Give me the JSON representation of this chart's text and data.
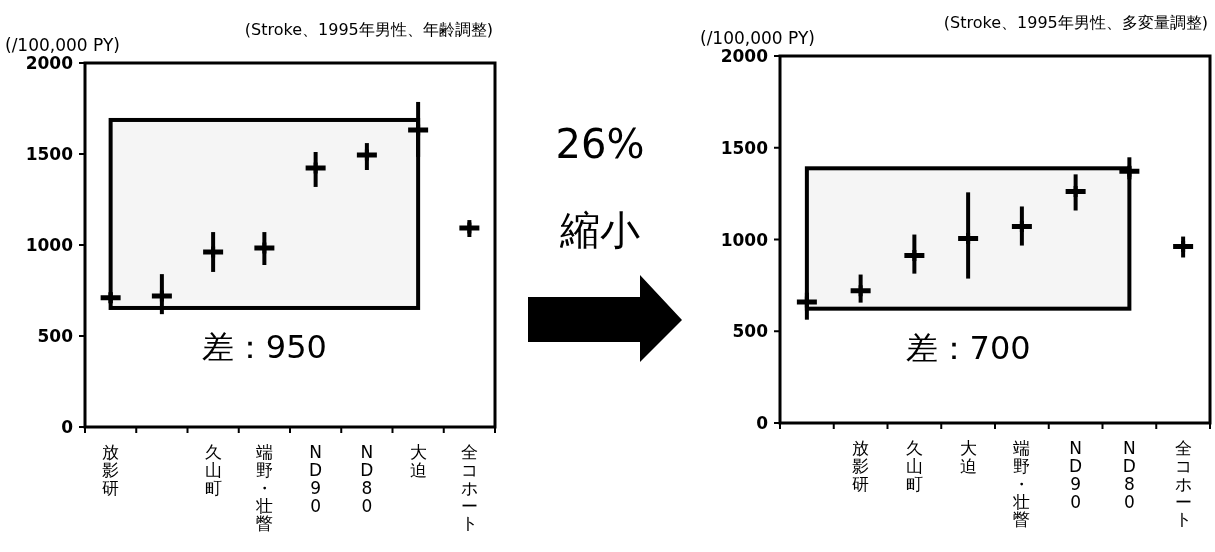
{
  "chart_data": [
    {
      "type": "scatter",
      "title": "(Stroke、1995年男性、年齢調整)",
      "ylabel": "(/100,000 PY)",
      "categories": [
        "放影研",
        null,
        "久山町",
        "端野・壮瞥",
        "ND90",
        "ND80",
        "大迫",
        "全コホート"
      ],
      "series": [
        {
          "color": "#000000",
          "values": [
            710,
            720,
            962,
            983,
            1423,
            1495,
            1632,
            1093
          ],
          "errors": [
            [
              680,
              740
            ],
            [
              620,
              840
            ],
            [
              852,
              1071
            ],
            [
              890,
              1071
            ],
            [
              1319,
              1511
            ],
            [
              1412,
              1560
            ],
            [
              1484,
              1786
            ],
            [
              1044,
              1137
            ]
          ]
        }
      ],
      "ylim": [
        0,
        2000
      ],
      "yticks": [
        0,
        500,
        1000,
        1500,
        2000
      ],
      "bands": [
        {
          "axis": "y",
          "from": 654,
          "to": 1687,
          "label": "差：950"
        }
      ]
    },
    {
      "type": "other",
      "annotations": [
        "26%",
        "縮小"
      ]
    },
    {
      "type": "scatter",
      "title": "(Stroke、1995年男性、多変量調整)",
      "ylabel": "(/100,000 PY)",
      "categories": [
        null,
        "放影研",
        "久山町",
        "大迫",
        "端野・壮瞥",
        "ND90",
        "ND80",
        "全コホート"
      ],
      "series": [
        {
          "color": "#000000",
          "values": [
            660,
            721,
            913,
            1005,
            1071,
            1262,
            1372,
            962
          ],
          "errors": [
            [
              563,
              710
            ],
            [
              656,
              809
            ],
            [
              814,
              1027
            ],
            [
              787,
              1257
            ],
            [
              967,
              1180
            ],
            [
              1158,
              1355
            ],
            [
              1328,
              1448
            ],
            [
              902,
              1016
            ]
          ]
        }
      ],
      "ylim": [
        0,
        2000
      ],
      "yticks": [
        0,
        500,
        1000,
        1500,
        2000
      ],
      "bands": [
        {
          "axis": "y",
          "from": 623,
          "to": 1388,
          "label": "差：700"
        }
      ]
    }
  ]
}
